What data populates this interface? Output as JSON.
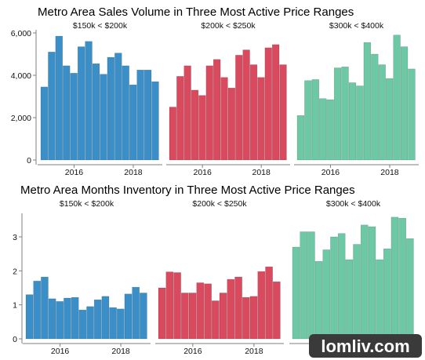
{
  "watermark": "lomliv.com",
  "chart_data": [
    {
      "type": "bar",
      "title": "Metro Area Sales Volume in Three Most Active Price Ranges",
      "xlabel": "",
      "ylabel": "",
      "ylim": [
        0,
        6000
      ],
      "y_ticks": [
        0,
        2000,
        4000,
        6000
      ],
      "y_tick_labels": [
        "0",
        "2,000",
        "4,000",
        "6,000"
      ],
      "x_tick_labels": [
        "2016",
        "2018"
      ],
      "grid": false,
      "legend": "none",
      "facets": [
        {
          "name": "$150k < $200k",
          "color": "#3a8fc8",
          "values": [
            3450,
            5100,
            5850,
            4450,
            4100,
            5350,
            5600,
            4550,
            4050,
            4850,
            5050,
            4450,
            3550,
            4250,
            4250,
            3700
          ]
        },
        {
          "name": "$200k < $250k",
          "color": "#d94a5e",
          "values": [
            2500,
            3950,
            4450,
            3300,
            3050,
            4450,
            4750,
            3900,
            3400,
            4950,
            5200,
            4500,
            3900,
            5300,
            5450,
            4500
          ]
        },
        {
          "name": "$300k < $400k",
          "color": "#6cc8a5",
          "values": [
            2100,
            3750,
            3800,
            2900,
            2850,
            4350,
            4400,
            3650,
            3500,
            5550,
            5000,
            4500,
            3850,
            5900,
            5350,
            4300
          ]
        }
      ]
    },
    {
      "type": "bar",
      "title": "Metro Area Months Inventory in Three Most Active Price Ranges",
      "xlabel": "",
      "ylabel": "",
      "ylim": [
        0,
        3.6
      ],
      "y_ticks": [
        0,
        1,
        2,
        3
      ],
      "y_tick_labels": [
        "0",
        "1",
        "2",
        "3"
      ],
      "x_tick_labels": [
        "2016",
        "2018"
      ],
      "grid": false,
      "legend": "none",
      "facets": [
        {
          "name": "$150k < $200k",
          "color": "#3a8fc8",
          "values": [
            1.3,
            1.7,
            1.82,
            1.18,
            1.1,
            1.2,
            1.22,
            0.85,
            0.95,
            1.15,
            1.25,
            0.92,
            0.88,
            1.32,
            1.52,
            1.35
          ]
        },
        {
          "name": "$200k < $250k",
          "color": "#d94a5e",
          "values": [
            1.5,
            1.97,
            1.95,
            1.35,
            1.35,
            1.65,
            1.62,
            1.12,
            1.35,
            1.75,
            1.82,
            1.22,
            1.25,
            1.98,
            2.12,
            1.68
          ]
        },
        {
          "name": "$300k < $400k",
          "color": "#6cc8a5",
          "values": [
            2.7,
            3.15,
            3.15,
            2.28,
            2.62,
            3.0,
            3.1,
            2.33,
            2.78,
            3.35,
            3.3,
            2.33,
            2.65,
            3.58,
            3.55,
            2.95
          ]
        }
      ]
    }
  ]
}
